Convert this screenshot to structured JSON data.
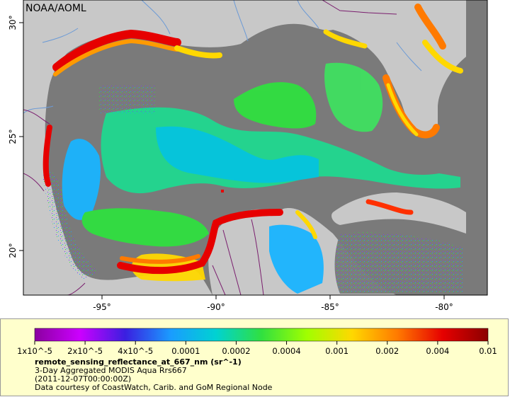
{
  "map": {
    "credit": "NOAA/AOML",
    "lon_ticks": [
      "-95°",
      "-90°",
      "-85°",
      "-80°"
    ],
    "lat_ticks": [
      "30°",
      "25°",
      "20°"
    ],
    "lon_range": [
      -98.5,
      -78.5
    ],
    "lat_range": [
      18,
      31
    ],
    "colors": {
      "land": "#c8c8c8",
      "nodata": "#7a7a7a",
      "border": "#7a1e6e",
      "river": "#6b9ad6"
    }
  },
  "legend": {
    "title": "remote_sensing_reflectance_at_667_nm (sr^-1)",
    "subtitle": "3-Day Aggregated MODIS Aqua Rrs667",
    "date": "(2011-12-07T00:00:00Z)",
    "courtesy": "Data courtesy of CoastWatch, Carib. and GoM Regional Node",
    "ticks": [
      "1x10^-5",
      "2x10^-5",
      "4x10^-5",
      "0.0001",
      "0.0002",
      "0.0004",
      "0.001",
      "0.002",
      "0.004",
      "0.01"
    ],
    "scale": "log",
    "colorbar_stops": [
      "#8b00a0",
      "#cc00ff",
      "#3a1fe0",
      "#1a9cff",
      "#00d2d2",
      "#30e040",
      "#a0ff00",
      "#ffd800",
      "#ff7a00",
      "#e60000",
      "#8b0000"
    ]
  }
}
